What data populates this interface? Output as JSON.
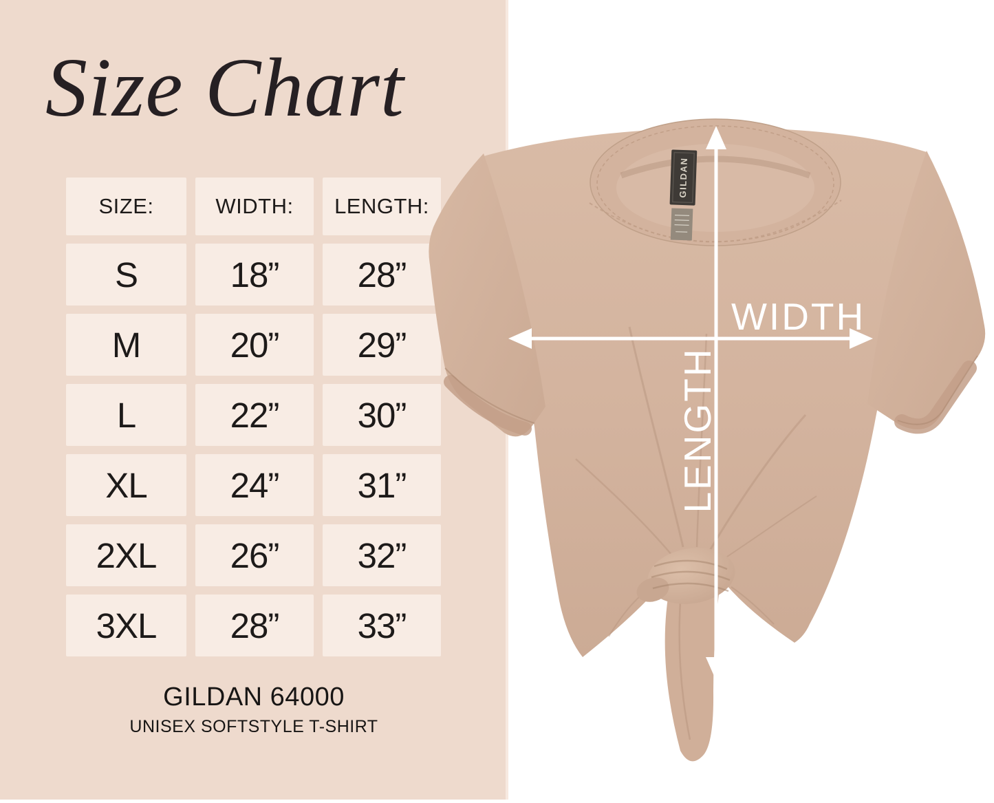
{
  "title": "Size Chart",
  "table": {
    "headers": [
      "SIZE:",
      "WIDTH:",
      "LENGTH:"
    ],
    "rows": [
      [
        "S",
        "18”",
        "28”"
      ],
      [
        "M",
        "20”",
        "29”"
      ],
      [
        "L",
        "22”",
        "30”"
      ],
      [
        "XL",
        "24”",
        "31”"
      ],
      [
        "2XL",
        "26”",
        "32”"
      ],
      [
        "3XL",
        "28”",
        "33”"
      ]
    ]
  },
  "footer": {
    "product": "GILDAN 64000",
    "subtitle": "UNISEX SOFTSTYLE T-SHIRT"
  },
  "diagram": {
    "width_label": "WIDTH",
    "length_label": "LENGTH",
    "tag_brand": "GILDAN"
  },
  "colors": {
    "panel_bg": "#eedacd",
    "cell_bg": "#f8ece4",
    "text": "#1d1a19",
    "background": "#ffffff",
    "shirt_base": "#d5b6a1",
    "shirt_shadow": "#b5937d",
    "arrow": "#ffffff",
    "neck_tag": "#3e3a36"
  }
}
